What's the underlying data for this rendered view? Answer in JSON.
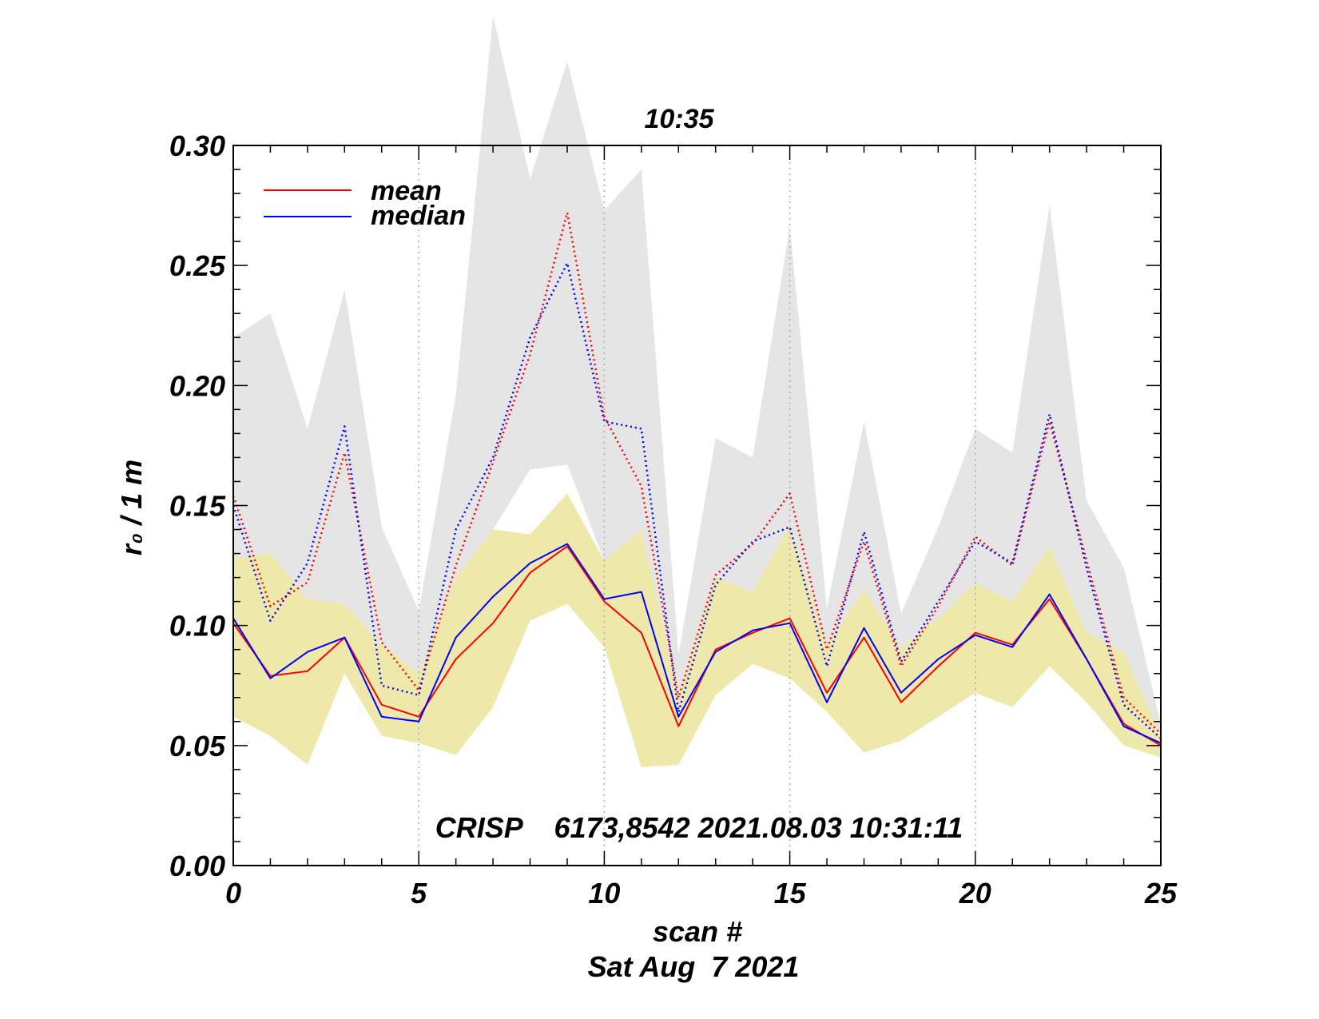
{
  "chart_data": {
    "type": "line",
    "title": "10:35",
    "subtitle": "CRISP    6173,8542 2021.08.03 10:31:11",
    "xlabel": "scan #",
    "xlabel2": "Sat Aug  7 2021",
    "ylabel": "r₀ / 1 m",
    "xlim": [
      0,
      25
    ],
    "ylim": [
      0.0,
      0.3
    ],
    "xticks": [
      "0",
      "5",
      "10",
      "15",
      "20",
      "25"
    ],
    "yticks": [
      "0.00",
      "0.05",
      "0.10",
      "0.15",
      "0.20",
      "0.25",
      "0.30"
    ],
    "xtick_values": [
      0,
      5,
      10,
      15,
      20,
      25
    ],
    "ytick_values": [
      0.0,
      0.05,
      0.1,
      0.15,
      0.2,
      0.25,
      0.3
    ],
    "vgrid_at": [
      5,
      10,
      15,
      20
    ],
    "legend": {
      "placement": "top-left",
      "entries": [
        "mean",
        "median"
      ]
    },
    "colors": {
      "mean": "#ff0000",
      "median": "#0000ff",
      "upper_band": "#e5e5e5",
      "lower_band": "#eee8aa",
      "grid": "#aaaaaa"
    },
    "x": [
      0,
      1,
      2,
      3,
      4,
      5,
      6,
      7,
      8,
      9,
      10,
      11,
      12,
      13,
      14,
      15,
      16,
      17,
      18,
      19,
      20,
      21,
      22,
      23,
      24,
      25
    ],
    "series": [
      {
        "name": "mean",
        "style": "solid",
        "color": "#ff0000",
        "values": [
          0.101,
          0.079,
          0.081,
          0.095,
          0.067,
          0.062,
          0.086,
          0.101,
          0.122,
          0.133,
          0.11,
          0.097,
          0.058,
          0.09,
          0.097,
          0.103,
          0.072,
          0.095,
          0.068,
          0.083,
          0.097,
          0.092,
          0.111,
          0.086,
          0.059,
          0.05
        ]
      },
      {
        "name": "median",
        "style": "solid",
        "color": "#0000ff",
        "values": [
          0.103,
          0.078,
          0.089,
          0.095,
          0.062,
          0.06,
          0.095,
          0.112,
          0.126,
          0.134,
          0.111,
          0.114,
          0.062,
          0.089,
          0.098,
          0.101,
          0.068,
          0.099,
          0.072,
          0.086,
          0.096,
          0.091,
          0.113,
          0.086,
          0.058,
          0.051
        ]
      },
      {
        "name": "mean (upper)",
        "style": "dotted",
        "color": "#ff0000",
        "values": [
          0.154,
          0.108,
          0.118,
          0.172,
          0.093,
          0.073,
          0.125,
          0.168,
          0.213,
          0.272,
          0.187,
          0.158,
          0.07,
          0.121,
          0.134,
          0.155,
          0.09,
          0.135,
          0.083,
          0.108,
          0.137,
          0.125,
          0.185,
          0.127,
          0.07,
          0.055
        ]
      },
      {
        "name": "median (upper)",
        "style": "dotted",
        "color": "#0000ff",
        "values": [
          0.15,
          0.102,
          0.126,
          0.183,
          0.075,
          0.071,
          0.14,
          0.17,
          0.22,
          0.251,
          0.185,
          0.182,
          0.064,
          0.117,
          0.135,
          0.141,
          0.083,
          0.139,
          0.085,
          0.11,
          0.135,
          0.126,
          0.188,
          0.124,
          0.067,
          0.053
        ]
      },
      {
        "name": "upper band high",
        "style": "fill",
        "color": "#e5e5e5",
        "values": [
          0.22,
          0.23,
          0.182,
          0.24,
          0.141,
          0.106,
          0.196,
          0.354,
          0.286,
          0.335,
          0.273,
          0.29,
          0.088,
          0.178,
          0.17,
          0.266,
          0.107,
          0.185,
          0.105,
          0.141,
          0.182,
          0.172,
          0.275,
          0.152,
          0.124,
          0.059
        ]
      },
      {
        "name": "upper band low",
        "style": "fill",
        "color": "#e5e5e5",
        "values": [
          0.128,
          0.13,
          0.111,
          0.109,
          0.092,
          0.08,
          0.12,
          0.14,
          0.165,
          0.167,
          0.127,
          0.14,
          0.071,
          0.12,
          0.114,
          0.142,
          0.092,
          0.115,
          0.091,
          0.103,
          0.118,
          0.11,
          0.133,
          0.097,
          0.089,
          0.054
        ]
      },
      {
        "name": "lower band high",
        "style": "fill",
        "color": "#eee8aa",
        "values": [
          0.128,
          0.13,
          0.111,
          0.109,
          0.092,
          0.08,
          0.12,
          0.14,
          0.138,
          0.155,
          0.127,
          0.14,
          0.071,
          0.12,
          0.114,
          0.142,
          0.092,
          0.115,
          0.091,
          0.103,
          0.118,
          0.11,
          0.133,
          0.097,
          0.089,
          0.054
        ]
      },
      {
        "name": "lower band low",
        "style": "fill",
        "color": "#eee8aa",
        "values": [
          0.062,
          0.054,
          0.042,
          0.08,
          0.054,
          0.051,
          0.046,
          0.066,
          0.102,
          0.109,
          0.091,
          0.041,
          0.042,
          0.071,
          0.084,
          0.078,
          0.064,
          0.047,
          0.052,
          0.062,
          0.072,
          0.066,
          0.083,
          0.068,
          0.05,
          0.045
        ]
      }
    ]
  }
}
